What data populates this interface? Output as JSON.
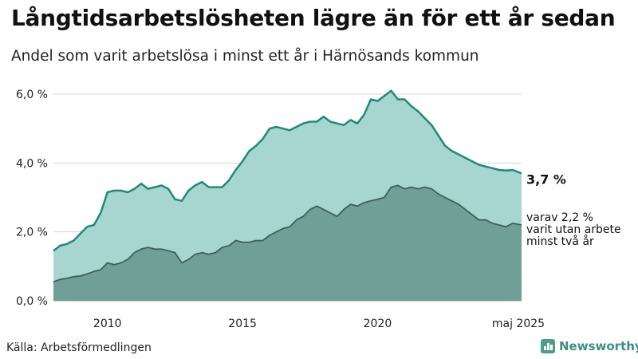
{
  "header": {
    "title": "Långtidsarbetslösheten lägre än för ett år sedan",
    "subtitle": "Andel som varit arbetslösa i minst ett år i Härnösands kommun"
  },
  "footer": {
    "source": "Källa: Arbetsförmedlingen",
    "logo_text": "Newsworthy"
  },
  "colors": {
    "primary_fill": "#a6d6cf",
    "primary_line": "#1f8a7a",
    "secondary_fill": "#6f9f97",
    "secondary_line": "#3f5f59"
  },
  "icons": {
    "logo": "newsworthy-bar-chart-icon"
  },
  "chart_data": {
    "type": "area",
    "x_range": [
      2008.0,
      2025.33
    ],
    "ylim": [
      0,
      6
    ],
    "y_ticks": [
      0,
      2,
      4,
      6
    ],
    "y_tick_labels": [
      "0,0 %",
      "2,0 %",
      "4,0 %",
      "6,0 %"
    ],
    "x_ticks": [
      2010,
      2015,
      2020,
      2025.33
    ],
    "x_tick_labels": [
      "2010",
      "2015",
      "2020",
      "maj 2025"
    ],
    "grid": true,
    "end_label": "3,7 %",
    "secondary_label_lines": [
      "varav 2,2 %",
      "varit utan arbete",
      "minst två år"
    ],
    "series": [
      {
        "key": "minst_ett_ar",
        "x": [
          2008.0,
          2008.25,
          2008.5,
          2008.75,
          2009.0,
          2009.25,
          2009.5,
          2009.75,
          2010.0,
          2010.25,
          2010.5,
          2010.75,
          2011.0,
          2011.25,
          2011.5,
          2011.75,
          2012.0,
          2012.25,
          2012.5,
          2012.75,
          2013.0,
          2013.25,
          2013.5,
          2013.75,
          2014.0,
          2014.25,
          2014.5,
          2014.75,
          2015.0,
          2015.25,
          2015.5,
          2015.75,
          2016.0,
          2016.25,
          2016.5,
          2016.75,
          2017.0,
          2017.25,
          2017.5,
          2017.75,
          2018.0,
          2018.25,
          2018.5,
          2018.75,
          2019.0,
          2019.25,
          2019.5,
          2019.75,
          2020.0,
          2020.25,
          2020.5,
          2020.75,
          2021.0,
          2021.25,
          2021.5,
          2021.75,
          2022.0,
          2022.25,
          2022.5,
          2022.75,
          2023.0,
          2023.25,
          2023.5,
          2023.75,
          2024.0,
          2024.25,
          2024.5,
          2024.75,
          2025.0,
          2025.33
        ],
        "values": [
          1.45,
          1.6,
          1.65,
          1.75,
          1.95,
          2.15,
          2.2,
          2.55,
          3.15,
          3.2,
          3.2,
          3.15,
          3.25,
          3.4,
          3.25,
          3.3,
          3.35,
          3.25,
          2.95,
          2.9,
          3.2,
          3.35,
          3.45,
          3.3,
          3.3,
          3.3,
          3.5,
          3.8,
          4.05,
          4.35,
          4.5,
          4.7,
          5.0,
          5.05,
          5.0,
          4.95,
          5.05,
          5.15,
          5.2,
          5.2,
          5.35,
          5.2,
          5.15,
          5.1,
          5.25,
          5.15,
          5.4,
          5.85,
          5.8,
          5.95,
          6.1,
          5.85,
          5.85,
          5.65,
          5.5,
          5.3,
          5.1,
          4.8,
          4.5,
          4.35,
          4.25,
          4.15,
          4.05,
          3.95,
          3.9,
          3.85,
          3.8,
          3.78,
          3.8,
          3.7
        ]
      },
      {
        "key": "minst_tva_ar",
        "x": [
          2008.0,
          2008.25,
          2008.5,
          2008.75,
          2009.0,
          2009.25,
          2009.5,
          2009.75,
          2010.0,
          2010.25,
          2010.5,
          2010.75,
          2011.0,
          2011.25,
          2011.5,
          2011.75,
          2012.0,
          2012.25,
          2012.5,
          2012.75,
          2013.0,
          2013.25,
          2013.5,
          2013.75,
          2014.0,
          2014.25,
          2014.5,
          2014.75,
          2015.0,
          2015.25,
          2015.5,
          2015.75,
          2016.0,
          2016.25,
          2016.5,
          2016.75,
          2017.0,
          2017.25,
          2017.5,
          2017.75,
          2018.0,
          2018.25,
          2018.5,
          2018.75,
          2019.0,
          2019.25,
          2019.5,
          2019.75,
          2020.0,
          2020.25,
          2020.5,
          2020.75,
          2021.0,
          2021.25,
          2021.5,
          2021.75,
          2022.0,
          2022.25,
          2022.5,
          2022.75,
          2023.0,
          2023.25,
          2023.5,
          2023.75,
          2024.0,
          2024.25,
          2024.5,
          2024.75,
          2025.0,
          2025.33
        ],
        "values": [
          0.55,
          0.62,
          0.65,
          0.7,
          0.72,
          0.78,
          0.85,
          0.9,
          1.1,
          1.05,
          1.1,
          1.2,
          1.4,
          1.5,
          1.55,
          1.5,
          1.5,
          1.45,
          1.4,
          1.1,
          1.2,
          1.35,
          1.4,
          1.35,
          1.4,
          1.55,
          1.6,
          1.75,
          1.7,
          1.7,
          1.75,
          1.75,
          1.9,
          2.0,
          2.1,
          2.15,
          2.35,
          2.45,
          2.65,
          2.75,
          2.65,
          2.55,
          2.45,
          2.65,
          2.8,
          2.75,
          2.85,
          2.9,
          2.95,
          3.0,
          3.3,
          3.35,
          3.25,
          3.3,
          3.25,
          3.3,
          3.25,
          3.1,
          3.0,
          2.9,
          2.8,
          2.65,
          2.5,
          2.35,
          2.35,
          2.25,
          2.2,
          2.15,
          2.25,
          2.2
        ]
      }
    ]
  }
}
